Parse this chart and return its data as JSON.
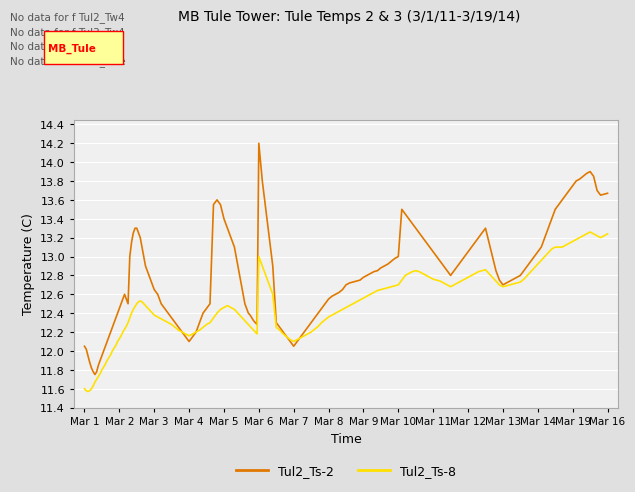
{
  "title": "MB Tule Tower: Tule Temps 2 & 3 (3/1/11-3/19/14)",
  "xlabel": "Time",
  "ylabel": "Temperature (C)",
  "ylim": [
    11.4,
    14.45
  ],
  "yticks": [
    11.4,
    11.6,
    11.8,
    12.0,
    12.2,
    12.4,
    12.6,
    12.8,
    13.0,
    13.2,
    13.4,
    13.6,
    13.8,
    14.0,
    14.2,
    14.4
  ],
  "xtick_labels": [
    "Mar 1",
    "Mar 2",
    "Mar 3",
    "Mar 4",
    "Mar 5",
    "Mar 6",
    "Mar 7",
    "Mar 8",
    "Mar 9",
    "Mar 10",
    "Mar 11",
    "Mar 12",
    "Mar 13",
    "Mar 14",
    "Mar 19",
    "Mar 16"
  ],
  "color_ts2": "#E07800",
  "color_ts8": "#FFE000",
  "legend_labels": [
    "Tul2_Ts-2",
    "Tul2_Ts-8"
  ],
  "no_data_texts": [
    "No data for f Tul2_Tw4",
    "No data for f Tul3_Tw4",
    "No data for f Tul3_Ts2",
    "No data for f Tul3_Tule"
  ],
  "background_color": "#f0f0f0",
  "grid_color": "#ffffff",
  "ts2_x": [
    0.0,
    0.05,
    0.1,
    0.15,
    0.2,
    0.25,
    0.3,
    0.35,
    0.4,
    0.45,
    0.5,
    0.55,
    0.6,
    0.65,
    0.7,
    0.75,
    0.8,
    0.85,
    0.9,
    0.95,
    1.0,
    1.05,
    1.1,
    1.15,
    1.2,
    1.25,
    1.3,
    1.35,
    1.4,
    1.45,
    1.5,
    1.55,
    1.6,
    1.65,
    1.7,
    1.75,
    1.8,
    1.85,
    1.9,
    1.95,
    2.0,
    2.1,
    2.2,
    2.3,
    2.4,
    2.5,
    2.6,
    2.7,
    2.8,
    2.9,
    3.0,
    3.1,
    3.2,
    3.3,
    3.4,
    3.5,
    3.6,
    3.7,
    3.8,
    3.9,
    4.0,
    4.05,
    4.1,
    4.15,
    4.2,
    4.25,
    4.3,
    4.35,
    4.4,
    4.45,
    4.5,
    4.55,
    4.6,
    4.65,
    4.7,
    4.75,
    4.8,
    4.85,
    4.9,
    4.95,
    5.0,
    5.1,
    5.2,
    5.3,
    5.4,
    5.5,
    5.6,
    5.7,
    5.8,
    5.9,
    6.0,
    6.1,
    6.2,
    6.3,
    6.4,
    6.5,
    6.6,
    6.7,
    6.8,
    6.9,
    7.0,
    7.1,
    7.2,
    7.3,
    7.4,
    7.5,
    7.6,
    7.7,
    7.8,
    7.9,
    8.0,
    8.1,
    8.2,
    8.3,
    8.4,
    8.5,
    8.6,
    8.7,
    8.8,
    8.9,
    9.0,
    9.1,
    9.2,
    9.3,
    9.4,
    9.5,
    9.6,
    9.7,
    9.8,
    9.9,
    10.0,
    10.1,
    10.2,
    10.3,
    10.4,
    10.5,
    10.6,
    10.7,
    10.8,
    10.9,
    11.0,
    11.1,
    11.2,
    11.3,
    11.4,
    11.5,
    11.6,
    11.7,
    11.8,
    11.9,
    12.0,
    12.1,
    12.2,
    12.3,
    12.4,
    12.5,
    12.6,
    12.7,
    12.8,
    12.9,
    13.0,
    13.1,
    13.2,
    13.3,
    13.4,
    13.5,
    13.6,
    13.7,
    13.8,
    13.9,
    14.0,
    14.1,
    14.2,
    14.3,
    14.4,
    14.5,
    14.6,
    14.7,
    14.8,
    14.9,
    15.0
  ],
  "ts2_y": [
    12.05,
    12.02,
    11.95,
    11.88,
    11.82,
    11.78,
    11.75,
    11.78,
    11.85,
    11.9,
    11.95,
    12.0,
    12.05,
    12.1,
    12.15,
    12.2,
    12.25,
    12.3,
    12.35,
    12.4,
    12.45,
    12.5,
    12.55,
    12.6,
    12.55,
    12.5,
    13.0,
    13.15,
    13.25,
    13.3,
    13.3,
    13.25,
    13.2,
    13.1,
    13.0,
    12.9,
    12.85,
    12.8,
    12.75,
    12.7,
    12.65,
    12.6,
    12.5,
    12.45,
    12.4,
    12.35,
    12.3,
    12.25,
    12.2,
    12.15,
    12.1,
    12.15,
    12.2,
    12.3,
    12.4,
    12.45,
    12.5,
    13.55,
    13.6,
    13.55,
    13.4,
    13.35,
    13.3,
    13.25,
    13.2,
    13.15,
    13.1,
    13.0,
    12.9,
    12.8,
    12.7,
    12.6,
    12.5,
    12.45,
    12.4,
    12.38,
    12.35,
    12.32,
    12.3,
    12.28,
    14.2,
    13.8,
    13.5,
    13.2,
    12.9,
    12.3,
    12.25,
    12.2,
    12.15,
    12.1,
    12.05,
    12.1,
    12.15,
    12.2,
    12.25,
    12.3,
    12.35,
    12.4,
    12.45,
    12.5,
    12.55,
    12.58,
    12.6,
    12.62,
    12.65,
    12.7,
    12.72,
    12.73,
    12.74,
    12.75,
    12.78,
    12.8,
    12.82,
    12.84,
    12.85,
    12.88,
    12.9,
    12.92,
    12.95,
    12.98,
    13.0,
    13.5,
    13.45,
    13.4,
    13.35,
    13.3,
    13.25,
    13.2,
    13.15,
    13.1,
    13.05,
    13.0,
    12.95,
    12.9,
    12.85,
    12.8,
    12.85,
    12.9,
    12.95,
    13.0,
    13.05,
    13.1,
    13.15,
    13.2,
    13.25,
    13.3,
    13.15,
    13.0,
    12.85,
    12.75,
    12.7,
    12.72,
    12.74,
    12.76,
    12.78,
    12.8,
    12.85,
    12.9,
    12.95,
    13.0,
    13.05,
    13.1,
    13.2,
    13.3,
    13.4,
    13.5,
    13.55,
    13.6,
    13.65,
    13.7,
    13.75,
    13.8,
    13.82,
    13.85,
    13.88,
    13.9,
    13.85,
    13.7,
    13.65,
    13.66,
    13.67
  ],
  "ts8_y": [
    11.6,
    11.58,
    11.57,
    11.58,
    11.6,
    11.63,
    11.67,
    11.7,
    11.73,
    11.76,
    11.8,
    11.83,
    11.86,
    11.9,
    11.93,
    11.96,
    12.0,
    12.03,
    12.06,
    12.1,
    12.13,
    12.16,
    12.2,
    12.23,
    12.26,
    12.3,
    12.35,
    12.4,
    12.44,
    12.47,
    12.5,
    12.52,
    12.53,
    12.52,
    12.5,
    12.48,
    12.46,
    12.44,
    12.42,
    12.4,
    12.38,
    12.36,
    12.34,
    12.32,
    12.3,
    12.28,
    12.25,
    12.22,
    12.2,
    12.18,
    12.16,
    12.18,
    12.2,
    12.22,
    12.25,
    12.28,
    12.3,
    12.35,
    12.4,
    12.44,
    12.46,
    12.47,
    12.48,
    12.47,
    12.46,
    12.45,
    12.44,
    12.42,
    12.4,
    12.38,
    12.36,
    12.34,
    12.32,
    12.3,
    12.28,
    12.26,
    12.24,
    12.22,
    12.2,
    12.18,
    13.0,
    12.9,
    12.8,
    12.7,
    12.6,
    12.25,
    12.22,
    12.18,
    12.15,
    12.12,
    12.1,
    12.12,
    12.14,
    12.16,
    12.18,
    12.2,
    12.23,
    12.26,
    12.3,
    12.33,
    12.36,
    12.38,
    12.4,
    12.42,
    12.44,
    12.46,
    12.48,
    12.5,
    12.52,
    12.54,
    12.56,
    12.58,
    12.6,
    12.62,
    12.64,
    12.65,
    12.66,
    12.67,
    12.68,
    12.69,
    12.7,
    12.75,
    12.8,
    12.82,
    12.84,
    12.85,
    12.84,
    12.82,
    12.8,
    12.78,
    12.76,
    12.75,
    12.74,
    12.72,
    12.7,
    12.68,
    12.7,
    12.72,
    12.74,
    12.76,
    12.78,
    12.8,
    12.82,
    12.84,
    12.85,
    12.86,
    12.82,
    12.78,
    12.74,
    12.7,
    12.68,
    12.69,
    12.7,
    12.71,
    12.72,
    12.73,
    12.76,
    12.8,
    12.84,
    12.88,
    12.92,
    12.96,
    13.0,
    13.04,
    13.08,
    13.1,
    13.1,
    13.1,
    13.12,
    13.14,
    13.16,
    13.18,
    13.2,
    13.22,
    13.24,
    13.26,
    13.24,
    13.22,
    13.2,
    13.22,
    13.24
  ]
}
